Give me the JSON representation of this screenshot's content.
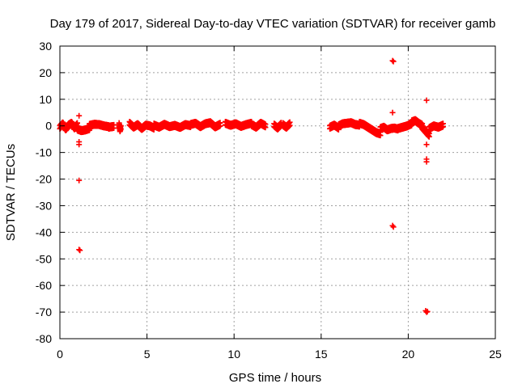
{
  "chart_data": {
    "type": "scatter",
    "title": "Day 179 of 2017, Sidereal Day-to-day VTEC variation (SDTVAR) for receiver gamb",
    "xlabel": "GPS time / hours",
    "ylabel": "SDTVAR / TECUs",
    "xlim": [
      0,
      25
    ],
    "ylim": [
      -80,
      30
    ],
    "xticks": [
      0,
      5,
      10,
      15,
      20,
      25
    ],
    "yticks": [
      30,
      20,
      10,
      0,
      -10,
      -20,
      -30,
      -40,
      -50,
      -60,
      -70,
      -80
    ],
    "grid": true,
    "marker": "+",
    "color": "#ff0000",
    "series": [
      {
        "name": "SDTVAR",
        "segments": [
          {
            "x_start": 0.0,
            "x_end": 1.0,
            "y_values": [
              -0.5,
              0.8,
              -1.2,
              0.3,
              1.0,
              -0.8,
              0.5
            ]
          },
          {
            "x_start": 1.0,
            "x_end": 1.7,
            "y_values": [
              -1.2,
              -1.8,
              -1.5,
              -1.0
            ]
          },
          {
            "x_start": 1.7,
            "x_end": 2.8,
            "y_values": [
              0.2,
              0.6,
              0.5,
              0.0,
              -0.3
            ]
          },
          {
            "x_start": 2.8,
            "x_end": 3.1,
            "y_values": [
              -0.5,
              -0.2
            ]
          },
          {
            "x_start": 3.4,
            "x_end": 3.5,
            "y_values": [
              0.5,
              -1.5,
              -0.5
            ]
          },
          {
            "x_start": 4.0,
            "x_end": 5.4,
            "y_values": [
              1.0,
              -0.5,
              0.5,
              -1.0,
              0.3,
              0.0,
              -0.8
            ]
          },
          {
            "x_start": 5.4,
            "x_end": 7.5,
            "y_values": [
              0.3,
              -0.5,
              0.6,
              -0.3,
              0.2,
              -0.6,
              0.5,
              0.1
            ]
          },
          {
            "x_start": 7.5,
            "x_end": 9.2,
            "y_values": [
              0.5,
              1.0,
              -0.3,
              0.8,
              1.2,
              -0.4,
              0.6
            ]
          },
          {
            "x_start": 9.5,
            "x_end": 11.0,
            "y_values": [
              1.0,
              0.2,
              0.8,
              -0.2,
              0.5,
              1.0
            ]
          },
          {
            "x_start": 11.0,
            "x_end": 11.8,
            "y_values": [
              0.5,
              -0.5,
              1.0,
              0.0
            ]
          },
          {
            "x_start": 12.3,
            "x_end": 12.7,
            "y_values": [
              0.3,
              -0.8,
              0.6
            ]
          },
          {
            "x_start": 12.8,
            "x_end": 13.2,
            "y_values": [
              0.5,
              -0.5,
              0.8
            ]
          },
          {
            "x_start": 15.5,
            "x_end": 16.0,
            "y_values": [
              -0.5,
              0.3,
              -0.8
            ]
          },
          {
            "x_start": 16.0,
            "x_end": 17.2,
            "y_values": [
              0.0,
              0.8,
              1.0,
              1.2,
              0.5,
              0.3
            ]
          },
          {
            "x_start": 17.2,
            "x_end": 18.4,
            "y_values": [
              1.0,
              0.5,
              -0.5,
              -1.5,
              -2.5,
              -3.0
            ]
          },
          {
            "x_start": 18.4,
            "x_end": 19.0,
            "y_values": [
              -1.0,
              -0.5,
              -1.5,
              -1.0
            ]
          },
          {
            "x_start": 19.0,
            "x_end": 19.4,
            "y_values": [
              -1.0,
              -0.8,
              -1.2
            ]
          },
          {
            "x_start": 19.4,
            "x_end": 20.2,
            "y_values": [
              -1.0,
              -0.5,
              0.0,
              0.8
            ]
          },
          {
            "x_start": 20.2,
            "x_end": 20.8,
            "y_values": [
              1.5,
              2.0,
              1.0,
              0.2
            ]
          },
          {
            "x_start": 20.8,
            "x_end": 21.2,
            "y_values": [
              -0.5,
              -1.5,
              -2.5,
              -3.5
            ]
          },
          {
            "x_start": 21.2,
            "x_end": 22.0,
            "y_values": [
              -1.0,
              0.0,
              -0.5,
              0.3
            ]
          }
        ],
        "outliers": [
          {
            "x": 1.1,
            "y": 3.8
          },
          {
            "x": 1.1,
            "y": -6.0
          },
          {
            "x": 1.1,
            "y": -7.0
          },
          {
            "x": 1.1,
            "y": -20.5
          },
          {
            "x": 1.1,
            "y": -46.5
          },
          {
            "x": 1.15,
            "y": -46.8
          },
          {
            "x": 19.1,
            "y": 24.5
          },
          {
            "x": 19.15,
            "y": 24.2
          },
          {
            "x": 19.1,
            "y": 5.0
          },
          {
            "x": 19.1,
            "y": -37.5
          },
          {
            "x": 19.15,
            "y": -38.0
          },
          {
            "x": 21.05,
            "y": 9.6
          },
          {
            "x": 21.05,
            "y": -7.0
          },
          {
            "x": 21.05,
            "y": -12.5
          },
          {
            "x": 21.05,
            "y": -13.5
          },
          {
            "x": 21.0,
            "y": -69.5
          },
          {
            "x": 21.05,
            "y": -70.0
          },
          {
            "x": 21.1,
            "y": -69.8
          }
        ]
      }
    ]
  }
}
